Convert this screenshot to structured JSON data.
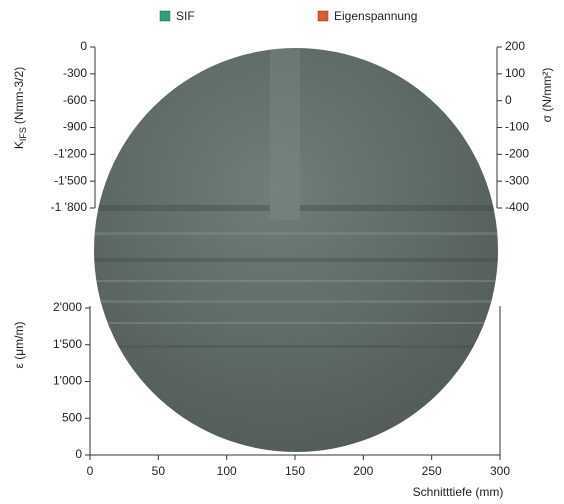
{
  "legend": [
    {
      "name": "SIF",
      "color": "#2ba37a"
    },
    {
      "name": "Eigenspannung",
      "color": "#e4572e"
    }
  ],
  "chart_data": [
    {
      "type": "line",
      "ylabel": {
        "symbol": "K",
        "subscript": "IFS",
        "unit": "(Nmm-3/2)"
      },
      "ylim": [
        -1800,
        0
      ],
      "yticks": [
        0,
        -300,
        -600,
        -900,
        {
          "value": -1200,
          "label": "-1'200"
        },
        {
          "value": -1500,
          "label": "-1'500"
        },
        {
          "value": -1800,
          "label": "-1 '800"
        }
      ],
      "y2label": "σ (N/mm²)",
      "y2lim": [
        -400,
        200
      ],
      "y2ticks": [
        200,
        100,
        0,
        -100,
        -200,
        -300,
        -400
      ]
    },
    {
      "type": "line",
      "ylabel": "ε (μm/m)",
      "xlabel": "Schnitttiefe (mm)",
      "xlim": [
        0,
        300
      ],
      "xticks": [
        0,
        50,
        100,
        150,
        200,
        250,
        300
      ],
      "ylim": [
        0,
        2000
      ],
      "yticks": [
        0,
        500,
        {
          "value": 1000,
          "label": "1'000"
        },
        {
          "value": 1500,
          "label": "1'500"
        },
        {
          "value": 2000,
          "label": "2'000"
        }
      ]
    }
  ]
}
